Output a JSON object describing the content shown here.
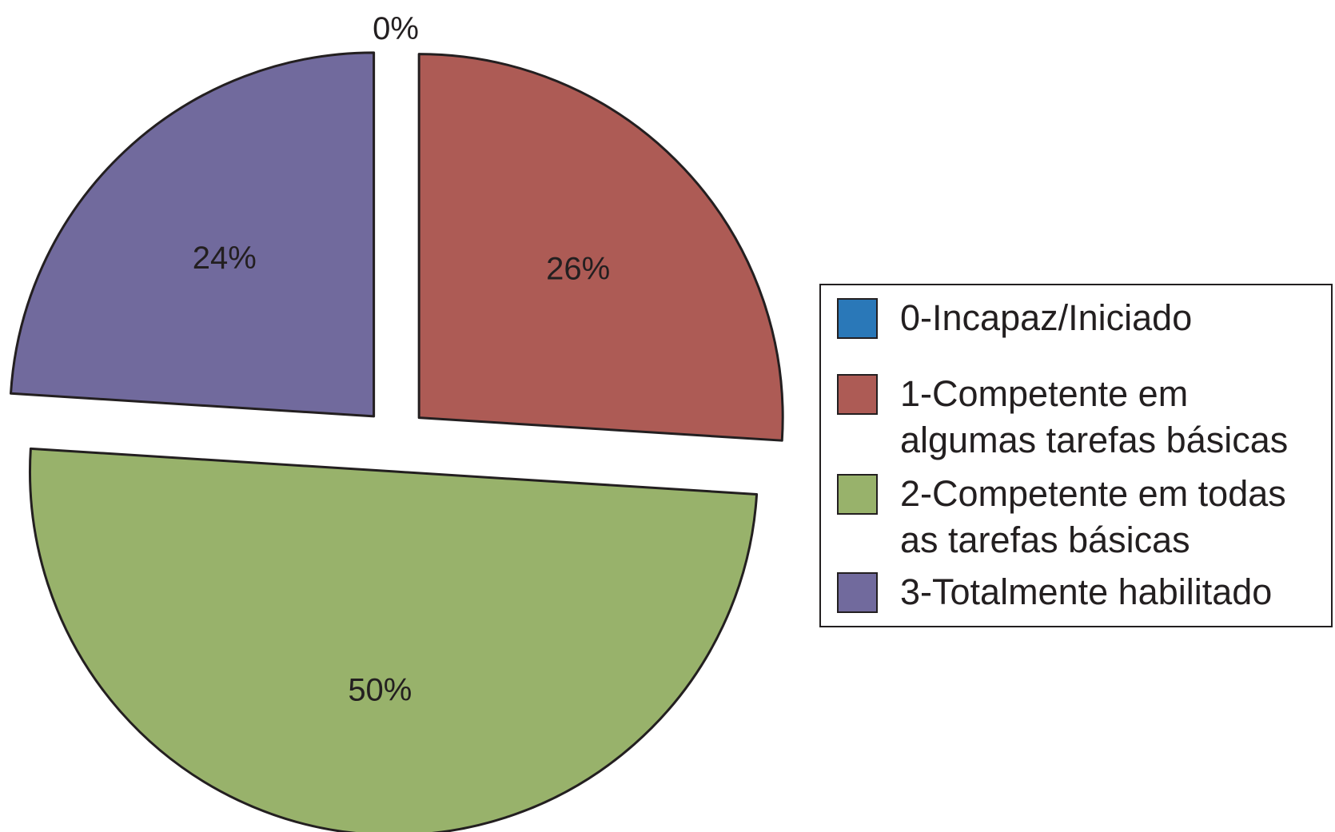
{
  "chart_data": {
    "type": "pie",
    "categories": [
      "0-Incapaz/Iniciado",
      "1-Competente em algumas tarefas básicas",
      "2-Competente em todas as tarefas básicas",
      "3-Totalmente habilitado"
    ],
    "values": [
      0,
      26,
      50,
      24
    ],
    "data_labels": [
      "0%",
      "26%",
      "50%",
      "24%"
    ],
    "colors": [
      "#2a78b8",
      "#ad5b55",
      "#98b26b",
      "#716a9d"
    ],
    "exploded": true,
    "legend_position": "right"
  },
  "legend": {
    "items": [
      {
        "label": "0-Incapaz/Iniciado",
        "color": "#2a78b8"
      },
      {
        "label": "1-Competente em algumas tarefas básicas",
        "color": "#ad5b55"
      },
      {
        "label": "2-Competente em todas as tarefas básicas",
        "color": "#98b26b"
      },
      {
        "label": "3-Totalmente habilitado",
        "color": "#716a9d"
      }
    ]
  }
}
